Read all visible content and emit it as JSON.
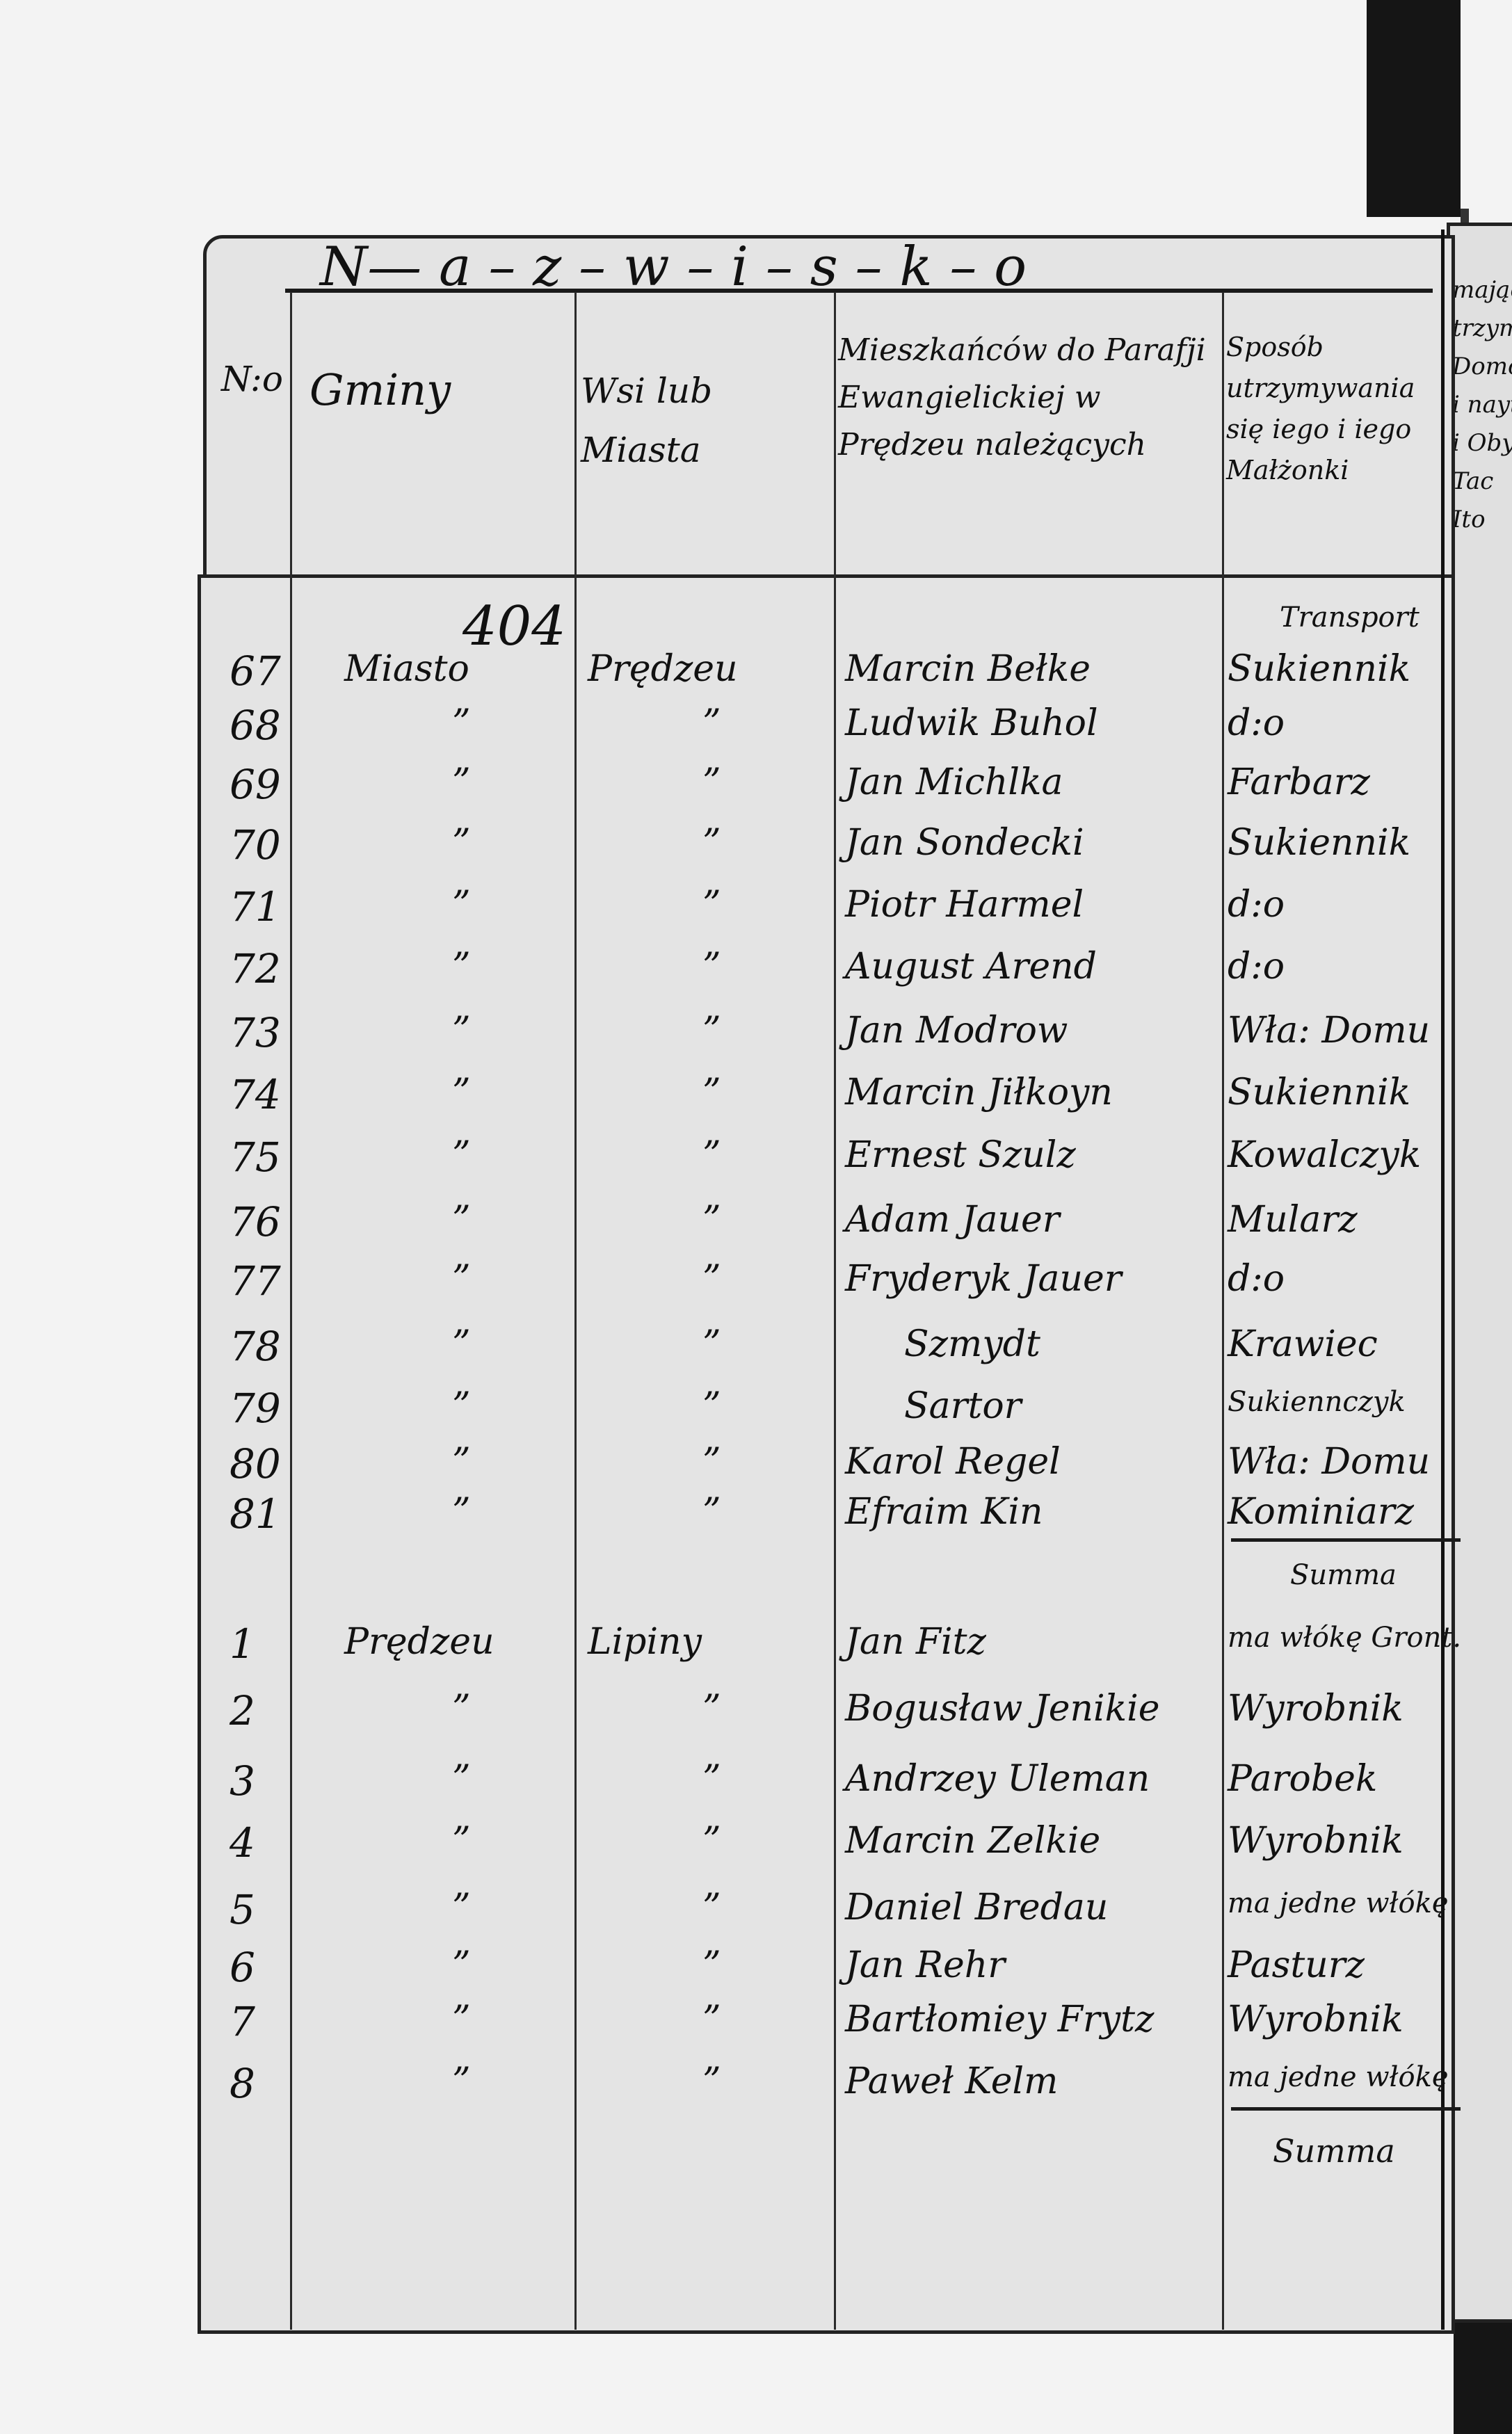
{
  "page_number": "404",
  "title": "N— a – z – w – i – s – k – o",
  "headers": {
    "number": "N:o",
    "gmina": "Gminy",
    "wies": "Wsi lub Miasta",
    "residents": "Mieszkańców do Parafji Ewangielickiej w Prędzeu należących",
    "occupation": "Sposób utrzymywania się iego i iego Małżonki"
  },
  "right_fragment": [
    "mający",
    "trzyma",
    "Domow",
    "i nayt",
    "i Oby",
    "Tac",
    "Ito"
  ],
  "transport": "Transport",
  "section1": {
    "rows": [
      {
        "no": "67",
        "gmina": "Miasto",
        "wies": "Prędzeu",
        "name": "Marcin Bełke",
        "occ": "Sukiennik"
      },
      {
        "no": "68",
        "gmina": "”",
        "wies": "”",
        "name": "Ludwik Buhol",
        "occ": "d:o"
      },
      {
        "no": "69",
        "gmina": "”",
        "wies": "”",
        "name": "Jan Michlka",
        "occ": "Farbarz"
      },
      {
        "no": "70",
        "gmina": "”",
        "wies": "”",
        "name": "Jan Sondecki",
        "occ": "Sukiennik"
      },
      {
        "no": "71",
        "gmina": "”",
        "wies": "”",
        "name": "Piotr Harmel",
        "occ": "d:o"
      },
      {
        "no": "72",
        "gmina": "”",
        "wies": "”",
        "name": "August Arend",
        "occ": "d:o"
      },
      {
        "no": "73",
        "gmina": "”",
        "wies": "”",
        "name": "Jan Modrow",
        "occ": "Wła: Domu"
      },
      {
        "no": "74",
        "gmina": "”",
        "wies": "”",
        "name": "Marcin Jiłkoyn",
        "occ": "Sukiennik"
      },
      {
        "no": "75",
        "gmina": "”",
        "wies": "”",
        "name": "Ernest Szulz",
        "occ": "Kowalczyk"
      },
      {
        "no": "76",
        "gmina": "”",
        "wies": "”",
        "name": "Adam Jauer",
        "occ": "Mularz"
      },
      {
        "no": "77",
        "gmina": "”",
        "wies": "”",
        "name": "Fryderyk Jauer",
        "occ": "d:o"
      },
      {
        "no": "78",
        "gmina": "”",
        "wies": "”",
        "name": "Szmydt",
        "occ": "Krawiec"
      },
      {
        "no": "79",
        "gmina": "”",
        "wies": "”",
        "name": "Sartor",
        "occ": "Sukiennczyk"
      },
      {
        "no": "80",
        "gmina": "”",
        "wies": "”",
        "name": "Karol Regel",
        "occ": "Wła: Domu"
      },
      {
        "no": "81",
        "gmina": "”",
        "wies": "”",
        "name": "Efraim Kin",
        "occ": "Kominiarz"
      }
    ],
    "summa": "Summa"
  },
  "section2": {
    "rows": [
      {
        "no": "1",
        "gmina": "Prędzeu",
        "wies": "Lipiny",
        "name": "Jan Fitz",
        "occ": "ma włókę Gront."
      },
      {
        "no": "2",
        "gmina": "”",
        "wies": "”",
        "name": "Bogusław Jenikie",
        "occ": "Wyrobnik"
      },
      {
        "no": "3",
        "gmina": "”",
        "wies": "”",
        "name": "Andrzey Uleman",
        "occ": "Parobek"
      },
      {
        "no": "4",
        "gmina": "”",
        "wies": "”",
        "name": "Marcin Zelkie",
        "occ": "Wyrobnik"
      },
      {
        "no": "5",
        "gmina": "”",
        "wies": "”",
        "name": "Daniel Bredau",
        "occ": "ma jedne włókę"
      },
      {
        "no": "6",
        "gmina": "”",
        "wies": "”",
        "name": "Jan Rehr",
        "occ": "Pasturz"
      },
      {
        "no": "7",
        "gmina": "”",
        "wies": "”",
        "name": "Bartłomiey Frytz",
        "occ": "Wyrobnik"
      },
      {
        "no": "8",
        "gmina": "”",
        "wies": "”",
        "name": "Paweł Kelm",
        "occ": "ma jedne włókę"
      }
    ],
    "summa": "Summa"
  }
}
